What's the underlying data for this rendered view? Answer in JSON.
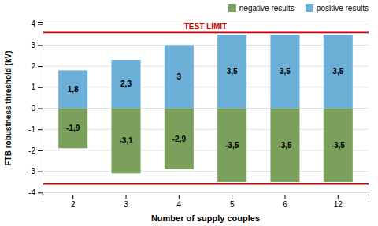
{
  "chart_data": {
    "type": "bar",
    "stacked": true,
    "categories": [
      "2",
      "3",
      "4",
      "5",
      "6",
      "12"
    ],
    "series": [
      {
        "name": "negative results",
        "color": "#7ba05b",
        "values": [
          -1.9,
          -3.1,
          -2.9,
          -3.5,
          -3.5,
          -3.5
        ],
        "value_labels": [
          "-1,9",
          "-3,1",
          "-2,9",
          "-3,5",
          "-3,5",
          "-3,5"
        ]
      },
      {
        "name": "positive results",
        "color": "#6baed6",
        "values": [
          1.8,
          2.3,
          3.0,
          3.5,
          3.5,
          3.5
        ],
        "value_labels": [
          "1,8",
          "2,3",
          "3",
          "3,5",
          "3,5",
          "3,5"
        ]
      }
    ],
    "data_labels": true,
    "xlabel": "Number of supply couples",
    "ylabel": "FTB robustness threshold (kV)",
    "ylim": [
      -4.1,
      4.1
    ],
    "yticks": [
      -4,
      -3,
      -2,
      -1,
      0,
      1,
      2,
      3,
      4
    ],
    "grid": true,
    "legend": "upper right",
    "reference_lines": [
      {
        "y": 3.6,
        "color": "#cc0000"
      },
      {
        "y": -3.6,
        "color": "#cc0000"
      }
    ],
    "annotations": [
      {
        "text": "TEST LIMIT",
        "y": 3.6,
        "color": "#cc0000"
      }
    ]
  }
}
